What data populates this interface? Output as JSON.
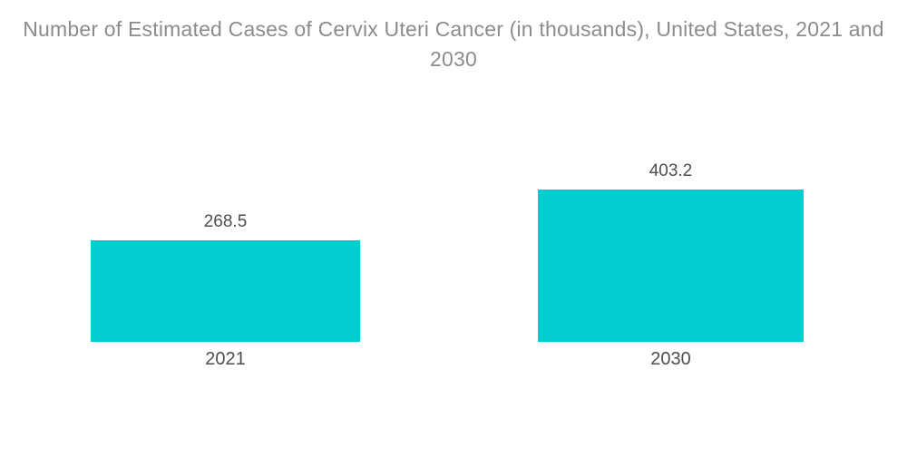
{
  "title": "Number of Estimated Cases of Cervix Uteri Cancer (in thousands), United States, 2021 and 2030",
  "colors": {
    "bar": "#00CCD2",
    "title_text": "#8C8C8C",
    "label_text": "#4E4E4E",
    "background": "#FFFFFF"
  },
  "chart_data": {
    "type": "bar",
    "title": "Number of Estimated Cases of Cervix Uteri Cancer (in thousands), United States, 2021 and 2030",
    "categories": [
      "2021",
      "2030"
    ],
    "values": [
      268.5,
      403.2
    ],
    "value_labels": [
      "268.5",
      "403.2"
    ],
    "xlabel": "",
    "ylabel": "",
    "ylim": [
      0,
      403.2
    ],
    "grid": false,
    "legend": false,
    "axes_visible": false,
    "bar_color": "#00CCD2",
    "orientation": "vertical"
  }
}
